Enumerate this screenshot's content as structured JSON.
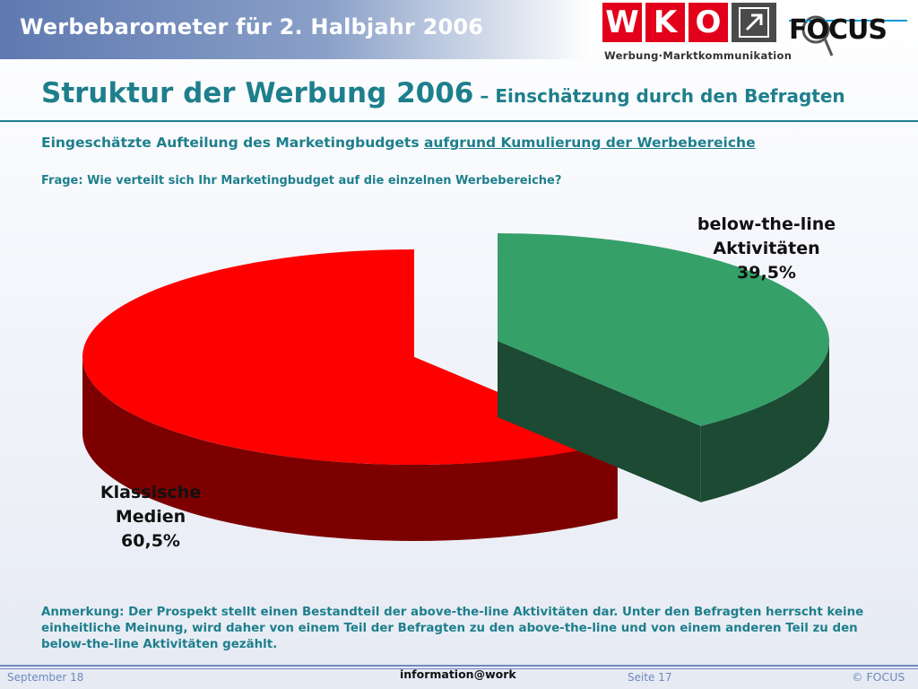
{
  "header": {
    "title": "Werbebarometer für 2. Halbjahr 2006"
  },
  "logos": {
    "wko_letters": [
      "W",
      "K",
      "O"
    ],
    "wko_arrow_icon": "arrow-up-right-icon",
    "wko_subline": "Werbung·Marktkommunikation",
    "focus": "FOCUS"
  },
  "slide": {
    "title_main": "Struktur der Werbung 2006",
    "title_suffix": " – Einschätzung durch den Befragten",
    "subtitle_prefix": "Eingeschätzte Aufteilung des Marketingbudgets ",
    "subtitle_underlined": "aufgrund Kumulierung der Werbebereiche",
    "question": "Frage: Wie verteilt sich Ihr Marketingbudget auf die einzelnen Werbebereiche?",
    "note": "Anmerkung: Der Prospekt stellt einen Bestandteil der above-the-line Aktivitäten dar. Unter den Befragten herrscht keine einheitliche Meinung, wird daher von einem Teil der Befragten zu den above-the-line und von einem anderen Teil zu den below-the-line Aktivitäten gezählt."
  },
  "chart_data": {
    "type": "pie",
    "title": "",
    "slices": [
      {
        "label_lines": [
          "Klassische",
          "Medien"
        ],
        "value": 60.5,
        "value_label": "60,5%",
        "color": "#ff0000",
        "side_color": "#7d0000"
      },
      {
        "label_lines": [
          "below-the-line",
          "Aktivitäten"
        ],
        "value": 39.5,
        "value_label": "39,5%",
        "color": "#35a068",
        "side_color": "#1c4a33"
      }
    ],
    "style": "3d-exploded"
  },
  "footer": {
    "date": "September 18",
    "center": "information@work",
    "page": "Seite 17",
    "copyright": "© FOCUS"
  }
}
